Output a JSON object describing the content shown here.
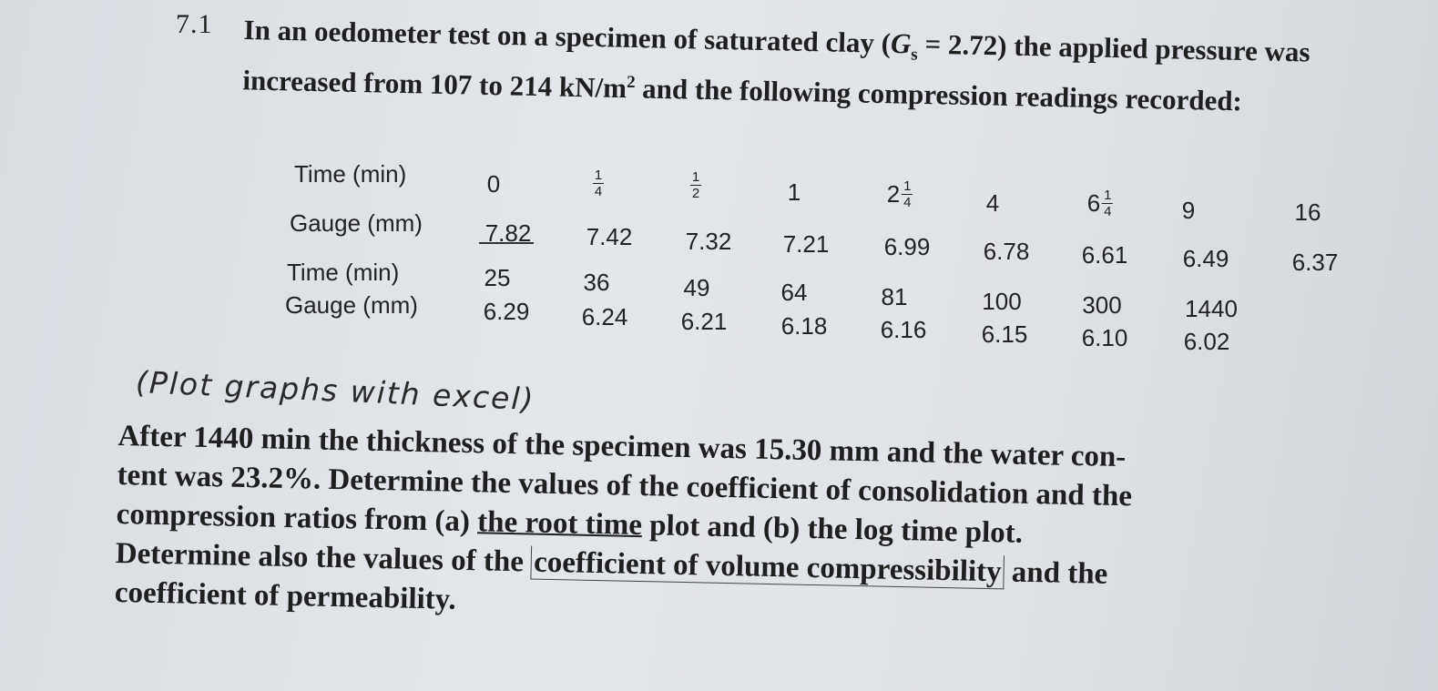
{
  "question_number": "7.1",
  "intro": {
    "part1": "In an oedometer test on a specimen of saturated clay (",
    "gs_symbol": "G",
    "gs_sub": "s",
    "part2": " = 2.72) the applied pressure was increased from 107 to 214 kN/m",
    "sup": "2",
    "part3": " and the following compression readings recorded:"
  },
  "table": {
    "row_labels": {
      "time1": "Time (min)",
      "gauge1": "Gauge (mm)",
      "time2": "Time (min)",
      "gauge2": "Gauge (mm)"
    },
    "time_row1": [
      "0",
      "1/4",
      "1/2",
      "1",
      "2 1/4",
      "4",
      "6 1/4",
      "9",
      "16"
    ],
    "gauge_row1": [
      "7.82",
      "7.42",
      "7.32",
      "7.21",
      "6.99",
      "6.78",
      "6.61",
      "6.49",
      "6.37"
    ],
    "time_row2": [
      "25",
      "36",
      "49",
      "64",
      "81",
      "100",
      "300",
      "1440"
    ],
    "gauge_row2": [
      "6.29",
      "6.24",
      "6.21",
      "6.18",
      "6.16",
      "6.15",
      "6.10",
      "6.02"
    ],
    "frac_parts": {
      "one": "1",
      "two": "2",
      "four": "4",
      "six": "6"
    }
  },
  "handwritten_note": "(Plot graphs with excel)",
  "body": {
    "line1": "After 1440 min the thickness of the specimen was 15.30 mm and the water con-",
    "line2": "tent was 23.2%. Determine the values of the coefficient of consolidation and the",
    "line3a": "compression ratios from (a) ",
    "line3b": "the root time",
    "line3c": " plot and (b) the log time plot.",
    "line4a": "Determine also the values of the ",
    "line4b": "coefficient of volume compressibility",
    "line4c": " and the",
    "line5": "coefficient of permeability."
  }
}
